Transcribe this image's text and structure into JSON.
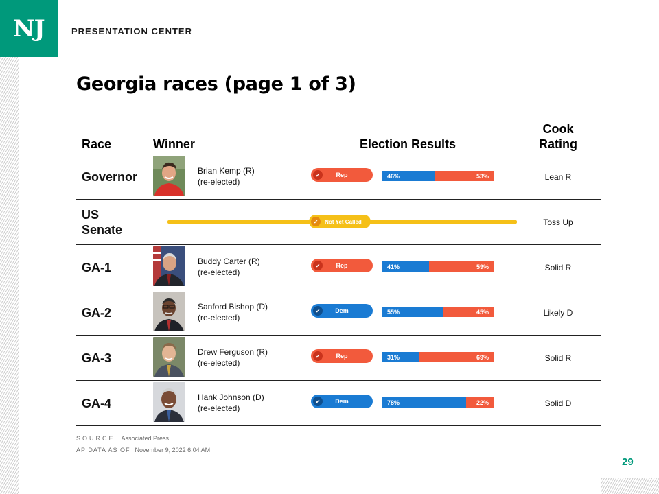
{
  "brand": {
    "logo": "NJ",
    "name": "PRESENTATION CENTER"
  },
  "title": "Georgia races (page 1 of 3)",
  "headers": {
    "race": "Race",
    "winner": "Winner",
    "results": "Election Results",
    "rating_line1": "Cook",
    "rating_line2": "Rating"
  },
  "rows": [
    {
      "race": "Governor",
      "winner_name": "Brian Kemp (R)",
      "winner_status": "(re-elected)",
      "pill": "Rep",
      "blue_pct": "46%",
      "red_pct": "53%",
      "blue_value": 46,
      "red_value": 53,
      "rating": "Lean R"
    },
    {
      "race_line1": "US",
      "race_line2": "Senate",
      "pill": "Not Yet Called",
      "rating": "Toss Up"
    },
    {
      "race": "GA-1",
      "winner_name": "Buddy Carter (R)",
      "winner_status": "(re-elected)",
      "pill": "Rep",
      "blue_pct": "41%",
      "red_pct": "59%",
      "blue_value": 41,
      "red_value": 59,
      "rating": "Solid R"
    },
    {
      "race": "GA-2",
      "winner_name": "Sanford Bishop (D)",
      "winner_status": "(re-elected)",
      "pill": "Dem",
      "blue_pct": "55%",
      "red_pct": "45%",
      "blue_value": 55,
      "red_value": 45,
      "rating": "Likely D"
    },
    {
      "race": "GA-3",
      "winner_name": "Drew Ferguson (R)",
      "winner_status": "(re-elected)",
      "pill": "Rep",
      "blue_pct": "31%",
      "red_pct": "69%",
      "blue_value": 31,
      "red_value": 69,
      "rating": "Solid R"
    },
    {
      "race": "GA-4",
      "winner_name": "Hank Johnson (D)",
      "winner_status": "(re-elected)",
      "pill": "Dem",
      "blue_pct": "78%",
      "red_pct": "22%",
      "blue_value": 78,
      "red_value": 22,
      "rating": "Solid D"
    }
  ],
  "footer": {
    "source_label": "SOURCE",
    "source_value": "Associated Press",
    "asof_label": "AP DATA AS OF",
    "asof_value": "November 9, 2022 6:04 AM"
  },
  "page_number": "29",
  "colors": {
    "brand": "#00997b",
    "rep": "#f25a3c",
    "dem": "#1a7bd3",
    "not_called": "#f5c018"
  },
  "icons": {
    "check": "check-icon"
  }
}
